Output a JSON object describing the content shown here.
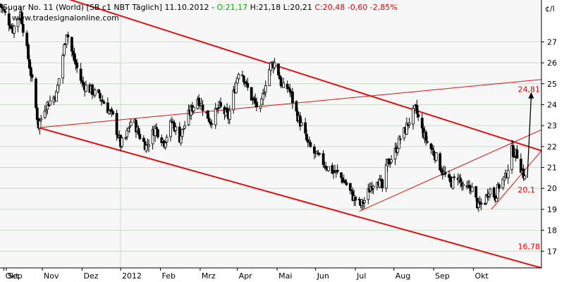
{
  "header": {
    "prefix": "Sugar No. 11 (World) [SB c1 NBT  Täglich]  11.10.2012 - ",
    "open": "O:21,17",
    "hl": " H:21,18 L:20,21 ",
    "close": "C:20,48 -0,60 -2,85%"
  },
  "watermark": "www.tradesignalonline.com",
  "unit_label": "¢/l",
  "colors": {
    "up": "#00aa00",
    "down": "#dd0000",
    "trend": "#e01010",
    "candle": "#000000",
    "grid": "#c8dcc8",
    "plot_bg": "#f7f7f7"
  },
  "chart_data": {
    "type": "candlestick",
    "ylim": [
      16.2,
      29.0
    ],
    "y_ticks": [
      17,
      18,
      19,
      20,
      21,
      22,
      23,
      24,
      25,
      26,
      27
    ],
    "x_ticks": [
      "Sep",
      "Okt",
      "Nov",
      "Dez",
      "2012",
      "Feb",
      "Mrz",
      "Apr",
      "Mai",
      "Jun",
      "Jul",
      "Aug",
      "Sep",
      "Okt"
    ],
    "x_range": [
      "2011-08-29",
      "2012-10-24"
    ],
    "close_path": [
      [
        "2011-08-29",
        28.8
      ],
      [
        "2011-09-08",
        27.6
      ],
      [
        "2011-09-14",
        28.4
      ],
      [
        "2011-09-22",
        25.5
      ],
      [
        "2011-09-28",
        23.0
      ],
      [
        "2011-10-03",
        23.9
      ],
      [
        "2011-10-12",
        24.5
      ],
      [
        "2011-10-20",
        27.5
      ],
      [
        "2011-10-25",
        26.3
      ],
      [
        "2011-11-01",
        25.0
      ],
      [
        "2011-11-10",
        24.6
      ],
      [
        "2011-11-17",
        24.2
      ],
      [
        "2011-11-25",
        23.4
      ],
      [
        "2011-12-01",
        22.1
      ],
      [
        "2011-12-05",
        22.4
      ],
      [
        "2011-12-10",
        23.4
      ],
      [
        "2011-12-15",
        22.6
      ],
      [
        "2011-12-21",
        22.0
      ],
      [
        "2011-12-28",
        22.9
      ],
      [
        "2012-01-04",
        22.2
      ],
      [
        "2012-01-10",
        23.2
      ],
      [
        "2012-01-16",
        22.4
      ],
      [
        "2012-01-23",
        23.5
      ],
      [
        "2012-01-30",
        24.3
      ],
      [
        "2012-02-04",
        23.8
      ],
      [
        "2012-02-09",
        23.2
      ],
      [
        "2012-02-16",
        23.9
      ],
      [
        "2012-02-23",
        23.4
      ],
      [
        "2012-02-28",
        24.8
      ],
      [
        "2012-03-03",
        25.9
      ],
      [
        "2012-03-08",
        24.9
      ],
      [
        "2012-03-13",
        24.2
      ],
      [
        "2012-03-19",
        23.7
      ],
      [
        "2012-03-23",
        25.1
      ],
      [
        "2012-03-27",
        25.9
      ],
      [
        "2012-03-31",
        26.0
      ],
      [
        "2012-04-05",
        24.8
      ],
      [
        "2012-04-10",
        24.8
      ],
      [
        "2012-04-16",
        23.6
      ],
      [
        "2012-04-20",
        23.0
      ],
      [
        "2012-04-25",
        22.1
      ],
      [
        "2012-05-01",
        21.6
      ],
      [
        "2012-05-06",
        21.3
      ],
      [
        "2012-05-12",
        20.9
      ],
      [
        "2012-05-18",
        20.7
      ],
      [
        "2012-05-24",
        20.3
      ],
      [
        "2012-05-30",
        19.6
      ],
      [
        "2012-06-05",
        19.2
      ],
      [
        "2012-06-09",
        19.5
      ],
      [
        "2012-06-13",
        20.1
      ],
      [
        "2012-06-18",
        20.5
      ],
      [
        "2012-06-22",
        20.0
      ],
      [
        "2012-06-26",
        21.2
      ],
      [
        "2012-07-01",
        21.6
      ],
      [
        "2012-07-06",
        22.4
      ],
      [
        "2012-07-10",
        22.8
      ],
      [
        "2012-07-14",
        23.4
      ],
      [
        "2012-07-18",
        23.8
      ],
      [
        "2012-07-22",
        22.9
      ],
      [
        "2012-07-27",
        22.2
      ],
      [
        "2012-08-02",
        21.6
      ],
      [
        "2012-08-08",
        20.8
      ],
      [
        "2012-08-14",
        20.2
      ],
      [
        "2012-08-20",
        20.6
      ],
      [
        "2012-08-25",
        19.8
      ],
      [
        "2012-08-30",
        20.1
      ],
      [
        "2012-09-05",
        19.1
      ],
      [
        "2012-09-10",
        19.4
      ],
      [
        "2012-09-13",
        20.0
      ],
      [
        "2012-09-18",
        19.6
      ],
      [
        "2012-09-22",
        20.3
      ],
      [
        "2012-09-26",
        20.5
      ],
      [
        "2012-10-01",
        21.8
      ],
      [
        "2012-10-05",
        21.6
      ],
      [
        "2012-10-08",
        21.0
      ],
      [
        "2012-10-11",
        20.48
      ]
    ],
    "trend_lines": [
      {
        "name": "upper-channel",
        "width": 2,
        "points": [
          [
            "2011-09-28",
            29.5
          ],
          [
            "2012-10-24",
            21.8
          ]
        ]
      },
      {
        "name": "lower-channel",
        "width": 2,
        "points": [
          [
            "2011-09-28",
            22.9
          ],
          [
            "2012-10-24",
            16.2
          ]
        ]
      },
      {
        "name": "upper-rising-trend",
        "width": 1,
        "points": [
          [
            "2011-09-28",
            22.9
          ],
          [
            "2012-10-24",
            25.2
          ]
        ]
      },
      {
        "name": "lower-rising-trend",
        "width": 1,
        "points": [
          [
            "2012-06-04",
            18.9
          ],
          [
            "2012-10-24",
            22.8
          ]
        ]
      },
      {
        "name": "short-rising-trend",
        "width": 1,
        "points": [
          [
            "2012-09-15",
            19.0
          ],
          [
            "2012-10-24",
            21.8
          ]
        ]
      }
    ],
    "arrow": {
      "from": [
        "2012-10-13",
        20.5
      ],
      "to": [
        "2012-10-16",
        24.6
      ]
    },
    "annotations": [
      {
        "text": "24,81",
        "at": [
          "2012-10-10",
          24.6
        ]
      },
      {
        "text": "20,1",
        "at": [
          "2012-10-10",
          19.8
        ]
      },
      {
        "text": "16,78",
        "at": [
          "2012-10-10",
          17.1
        ]
      }
    ]
  }
}
